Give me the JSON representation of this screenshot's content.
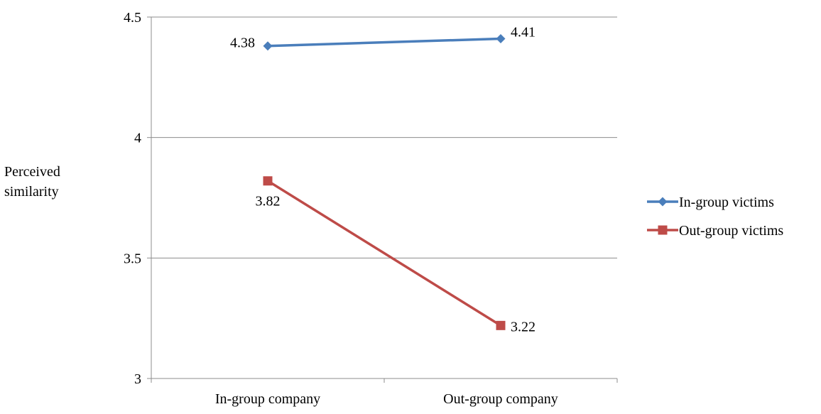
{
  "chart_data": {
    "type": "line",
    "title": "",
    "xlabel": "",
    "ylabel": "Perceived similarity",
    "categories": [
      "In-group company",
      "Out-group company"
    ],
    "ylim": [
      3,
      4.5
    ],
    "yticks": [
      "3",
      "3.5",
      "4",
      "4.5"
    ],
    "grid": true,
    "legend_position": "right",
    "series": [
      {
        "name": "In-group victims",
        "values": [
          4.38,
          4.41
        ],
        "labels": [
          "4.38",
          "4.41"
        ],
        "color": "#4a7ebb",
        "marker": "diamond"
      },
      {
        "name": "Out-group victims",
        "values": [
          3.82,
          3.22
        ],
        "labels": [
          "3.82",
          "3.22"
        ],
        "color": "#be4b48",
        "marker": "square"
      }
    ]
  }
}
